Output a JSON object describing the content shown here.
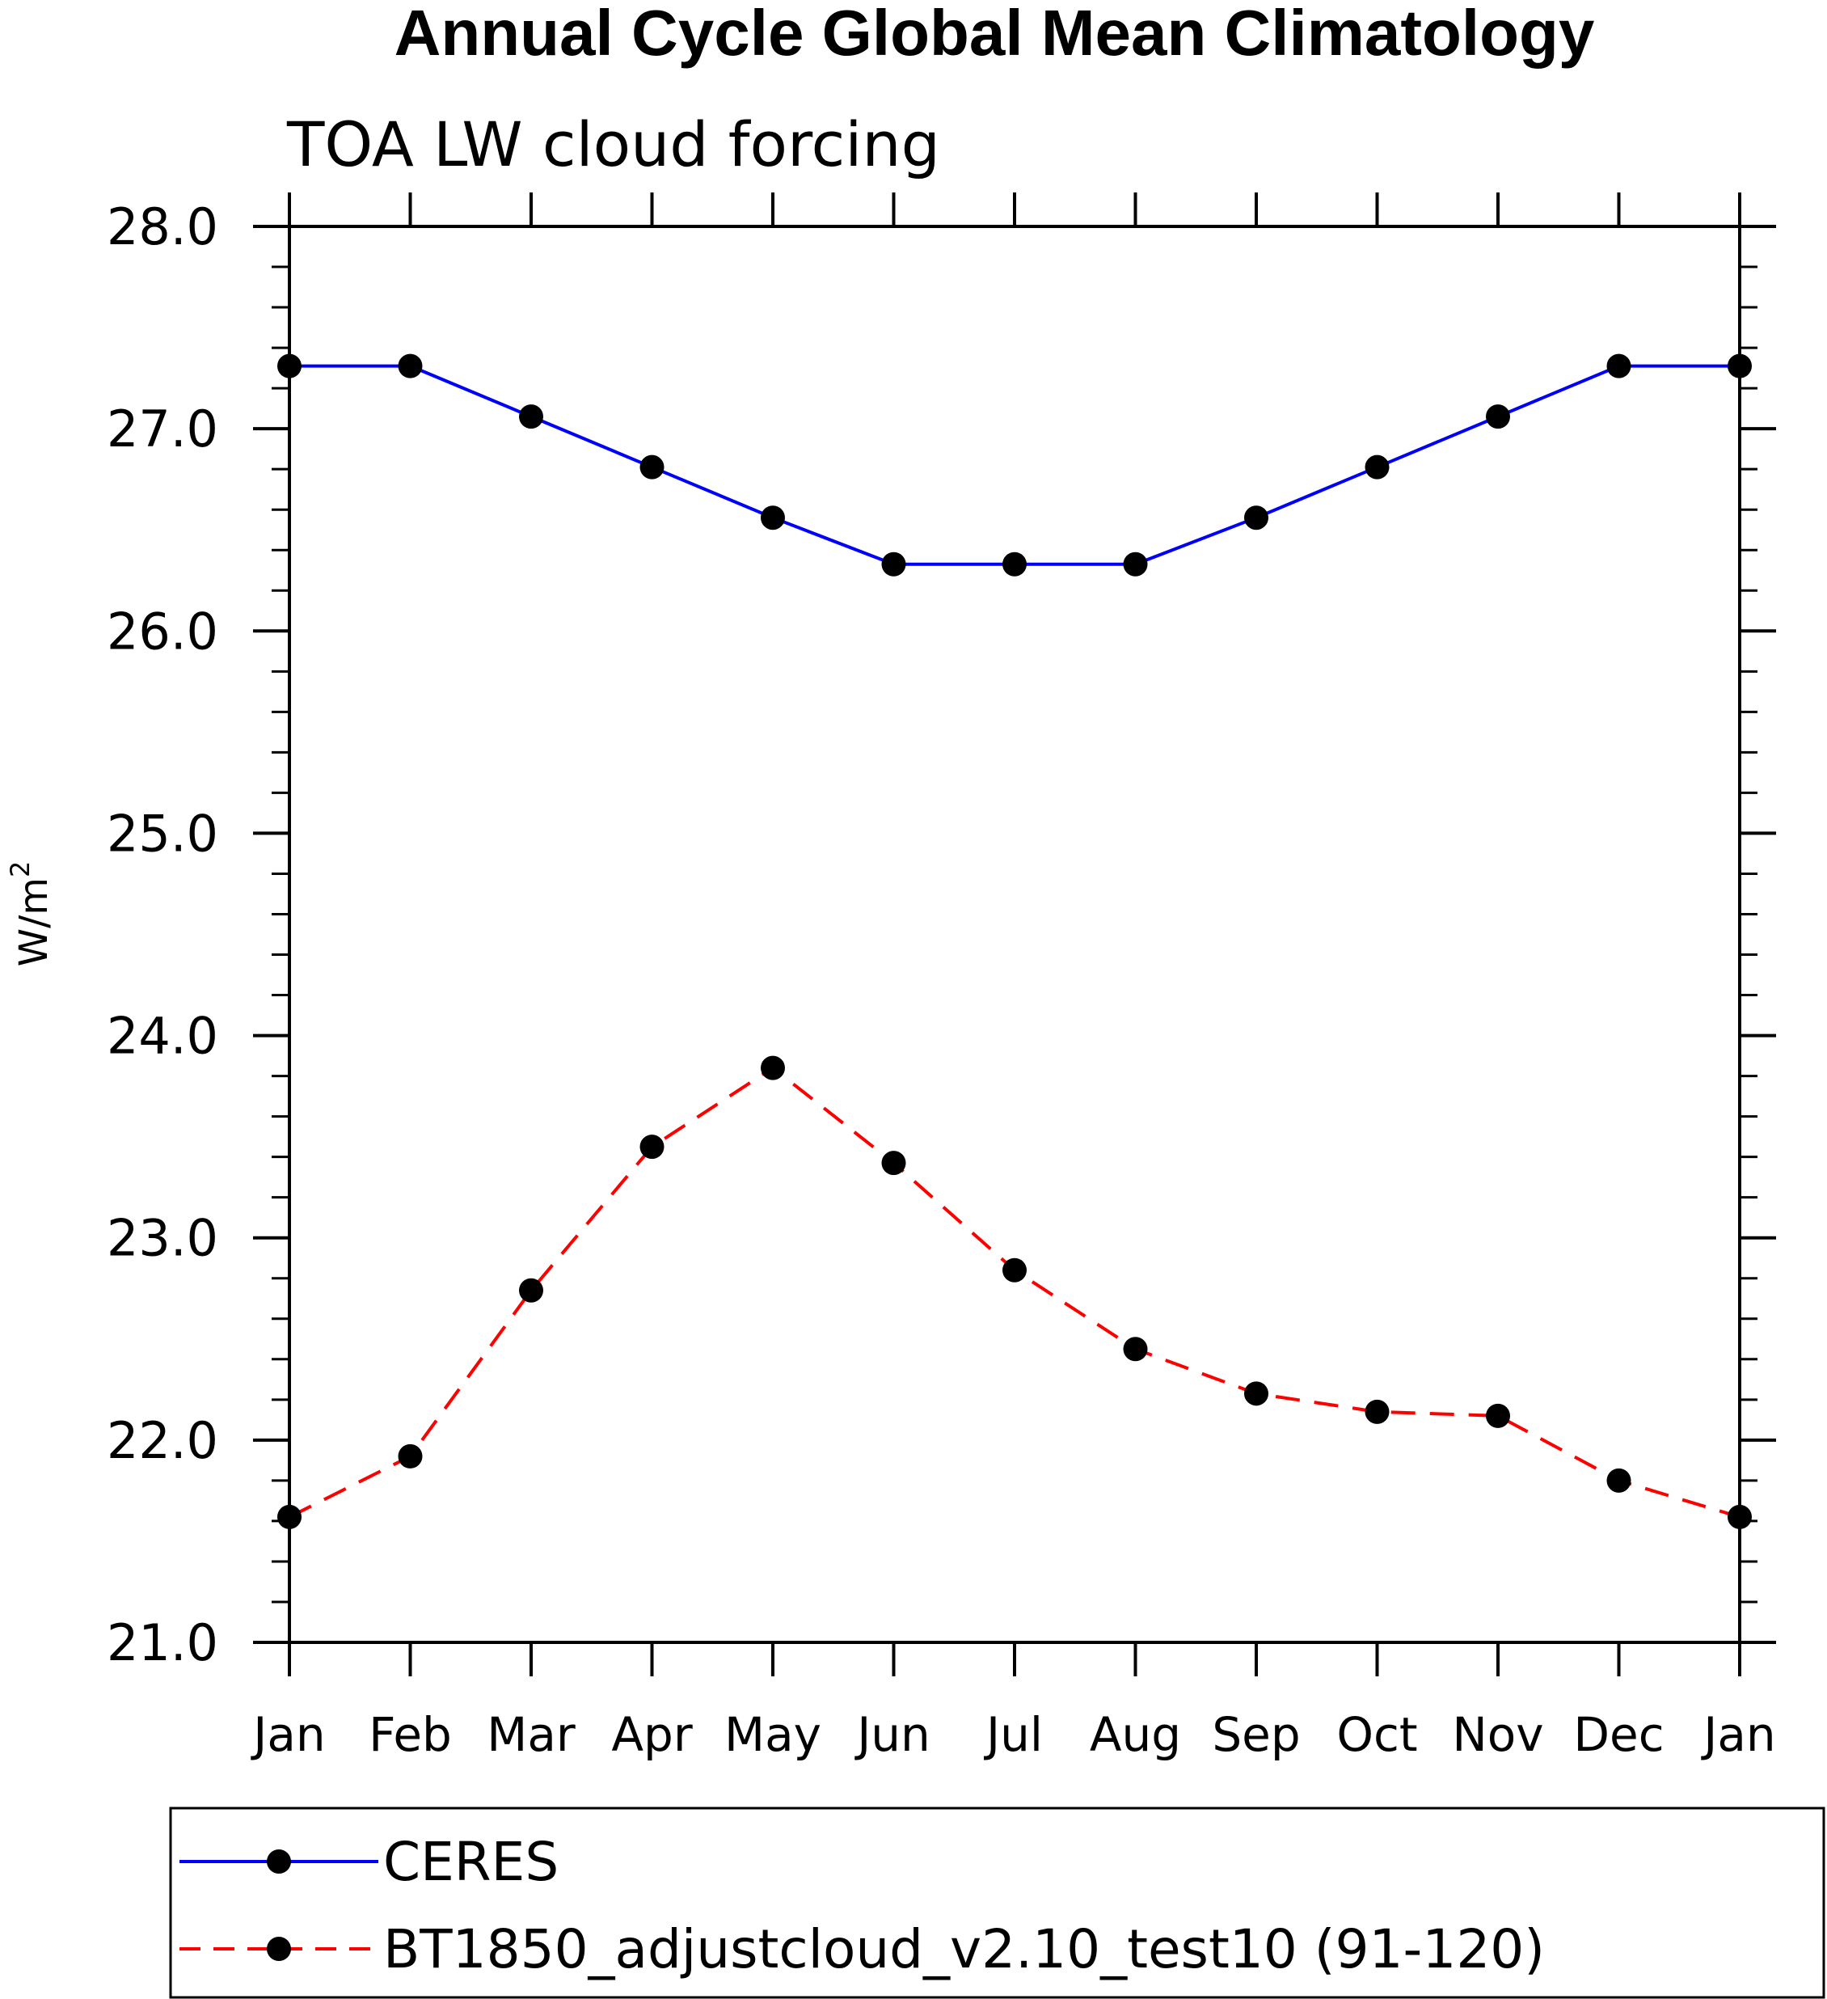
{
  "chart_data": {
    "type": "line",
    "title": "Annual Cycle Global Mean Climatology",
    "subtitle": "TOA LW cloud forcing",
    "xlabel": "",
    "ylabel": "W/m",
    "ylabel_superscript": "2",
    "categories": [
      "Jan",
      "Feb",
      "Mar",
      "Apr",
      "May",
      "Jun",
      "Jul",
      "Aug",
      "Sep",
      "Oct",
      "Nov",
      "Dec",
      "Jan"
    ],
    "ylim": [
      21.0,
      28.0
    ],
    "yticks": [
      "21.0",
      "22.0",
      "23.0",
      "24.0",
      "25.0",
      "26.0",
      "27.0",
      "28.0"
    ],
    "series": [
      {
        "name": "CERES",
        "color": "#0000ff",
        "dash": "solid",
        "values": [
          27.31,
          27.31,
          27.06,
          26.81,
          26.56,
          26.33,
          26.33,
          26.33,
          26.56,
          26.81,
          27.06,
          27.31,
          27.31
        ]
      },
      {
        "name": "BT1850_adjustcloud_v2.10_test10 (91-120)",
        "color": "#ff0000",
        "dash": "dashed",
        "values": [
          21.62,
          21.92,
          22.74,
          23.45,
          23.84,
          23.37,
          22.84,
          22.45,
          22.23,
          22.14,
          22.12,
          21.8,
          21.62
        ]
      }
    ],
    "legend_position": "bottom"
  }
}
